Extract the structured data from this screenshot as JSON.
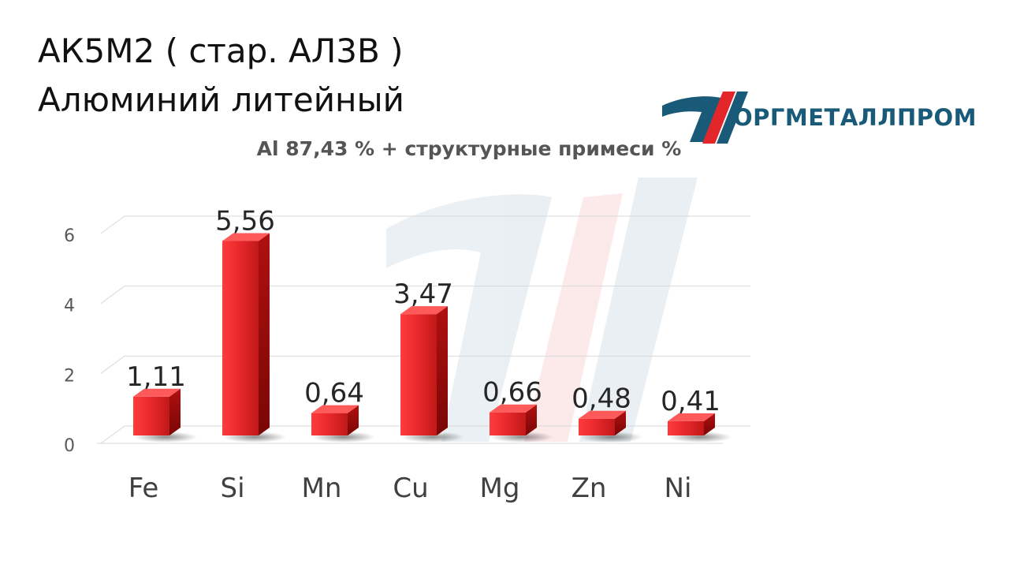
{
  "header": {
    "title_line1": "АК5М2 ( стар. АЛ3В )",
    "title_line2": "Алюминий литейный"
  },
  "logo": {
    "text": "ОРГМЕТАЛЛПРОМ",
    "icon": "orgmetallprom-logo-icon",
    "colors": {
      "blue": "#1a5a79",
      "red": "#e3262a"
    }
  },
  "chart_data": {
    "type": "bar",
    "title": "Al 87,43 % + структурные примеси %",
    "categories": [
      "Fe",
      "Si",
      "Mn",
      "Cu",
      "Mg",
      "Zn",
      "Ni"
    ],
    "values": [
      1.11,
      5.56,
      0.64,
      3.47,
      0.66,
      0.48,
      0.41
    ],
    "data_labels": [
      "1,11",
      "5,56",
      "0,64",
      "3,47",
      "0,66",
      "0,48",
      "0,41"
    ],
    "y_ticks": [
      0,
      2,
      4,
      6
    ],
    "ylim": [
      0,
      6
    ],
    "grid": true,
    "bar_color": "#e3262a",
    "style": "3d-column"
  }
}
